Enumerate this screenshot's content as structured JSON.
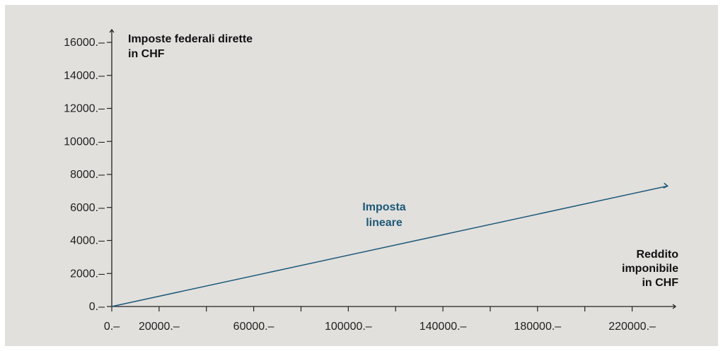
{
  "colors": {
    "panel_background": "#e1e0dd",
    "axis": "#222222",
    "series_line": "#1e5878",
    "series_label": "#1e5878"
  },
  "chart_data": {
    "type": "line",
    "ylabel_lines": [
      "Imposte federali dirette",
      "in CHF"
    ],
    "xlabel_lines": [
      "Reddito",
      "imponibile",
      "in CHF"
    ],
    "xlim": [
      0,
      235000
    ],
    "ylim": [
      0,
      16000
    ],
    "y_ticks": [
      {
        "value": 0,
        "label": "0.–"
      },
      {
        "value": 2000,
        "label": "2000.–"
      },
      {
        "value": 4000,
        "label": "4000.–"
      },
      {
        "value": 6000,
        "label": "6000.–"
      },
      {
        "value": 8000,
        "label": "8000.–"
      },
      {
        "value": 10000,
        "label": "10000.–"
      },
      {
        "value": 12000,
        "label": "12000.–"
      },
      {
        "value": 14000,
        "label": "14000.–"
      },
      {
        "value": 16000,
        "label": "16000.–"
      }
    ],
    "x_ticks_labeled": [
      {
        "value": 0,
        "label": "0.–"
      },
      {
        "value": 20000,
        "label": "20000.–"
      },
      {
        "value": 60000,
        "label": "60000.–"
      },
      {
        "value": 100000,
        "label": "100000.–"
      },
      {
        "value": 140000,
        "label": "140000.–"
      },
      {
        "value": 180000,
        "label": "180000.–"
      },
      {
        "value": 220000,
        "label": "220000.–"
      }
    ],
    "x_ticks_minor": [
      40000,
      80000,
      120000,
      160000,
      200000
    ],
    "grid": false,
    "series": [
      {
        "name": "Imposta lineare",
        "name_lines": [
          "Imposta",
          "lineare"
        ],
        "x": [
          0,
          235000
        ],
        "y": [
          0,
          7300
        ]
      }
    ]
  }
}
